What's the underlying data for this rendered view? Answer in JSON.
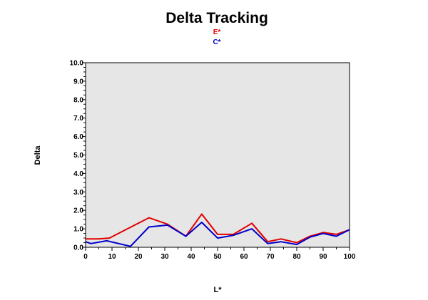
{
  "chart_data": {
    "type": "line",
    "title": "Delta Tracking",
    "xlabel": "L*",
    "ylabel": "Delta",
    "xlim": [
      0,
      100
    ],
    "ylim": [
      0,
      10
    ],
    "grid": false,
    "legend_position": "top-center",
    "background": "#e6e6e6",
    "x_ticks": [
      "0",
      "10",
      "20",
      "30",
      "40",
      "50",
      "60",
      "70",
      "80",
      "90",
      "100"
    ],
    "y_ticks": [
      "0.0",
      "1.0",
      "2.0",
      "3.0",
      "4.0",
      "5.0",
      "6.0",
      "7.0",
      "8.0",
      "9.0",
      "10.0"
    ],
    "series": [
      {
        "name": "E*",
        "color": "#e00000",
        "x": [
          0,
          5,
          9,
          24,
          31,
          38,
          44,
          50,
          56,
          63,
          69,
          74,
          80,
          85,
          90,
          95,
          100
        ],
        "y": [
          0.45,
          0.45,
          0.5,
          1.6,
          1.25,
          0.6,
          1.8,
          0.7,
          0.7,
          1.3,
          0.3,
          0.45,
          0.25,
          0.6,
          0.8,
          0.7,
          0.95
        ]
      },
      {
        "name": "C*",
        "color": "#0000cc",
        "x": [
          0,
          2,
          8,
          17,
          24,
          31,
          38,
          44,
          50,
          56,
          63,
          69,
          74,
          80,
          85,
          90,
          95,
          100
        ],
        "y": [
          0.3,
          0.2,
          0.35,
          0.05,
          1.1,
          1.2,
          0.6,
          1.35,
          0.5,
          0.65,
          1.0,
          0.2,
          0.3,
          0.15,
          0.55,
          0.75,
          0.6,
          0.95
        ]
      }
    ]
  }
}
